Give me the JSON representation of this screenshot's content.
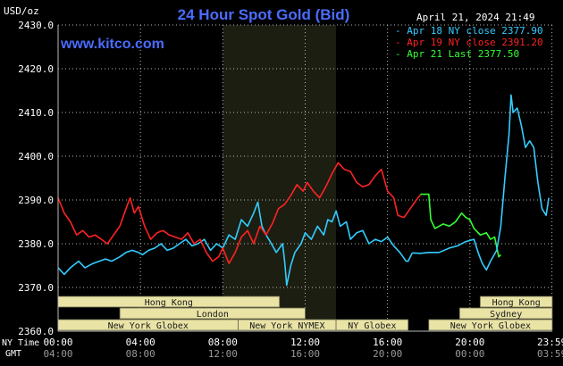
{
  "header": {
    "title": "24 Hour Spot Gold (Bid)",
    "date_time": "April 21, 2024 21:49",
    "y_unit": "USD/oz",
    "source": "www.kitco.com"
  },
  "axis_labels": {
    "ny_time": "NY Time",
    "gmt": "GMT"
  },
  "colors": {
    "background": "#000000",
    "title": "#4a6cff",
    "source": "#4a6cff",
    "text": "#ffffff",
    "grid": "#b8b8b8",
    "shade": "#1c1e12",
    "session_fill": "#e9e3a6",
    "session_text": "#1a1a1a",
    "ny_time_labels": "#ffffff",
    "gmt_labels": "#9a9a9a"
  },
  "legend": [
    {
      "label": "Apr 18 NY close 2377.90",
      "color": "#33ccff"
    },
    {
      "label": "Apr 19 NY close 2391.20",
      "color": "#ff2222"
    },
    {
      "label": "Apr 21 Last 2377.50",
      "color": "#33ff33"
    }
  ],
  "sessions": [
    {
      "label": "Hong Kong",
      "row": 0,
      "start": 0.0,
      "end": 10.75
    },
    {
      "label": "Hong Kong",
      "row": 0,
      "start": 20.5,
      "end": 24.0
    },
    {
      "label": "London",
      "row": 1,
      "start": 3.0,
      "end": 12.0
    },
    {
      "label": "Sydney",
      "row": 1,
      "start": 19.5,
      "end": 24.0
    },
    {
      "label": "New York Globex",
      "row": 2,
      "start": 0.0,
      "end": 8.75
    },
    {
      "label": "New York NYMEX",
      "row": 2,
      "start": 8.75,
      "end": 13.5
    },
    {
      "label": "NY Globex",
      "row": 2,
      "start": 13.5,
      "end": 17.0
    },
    {
      "label": "New York Globex",
      "row": 2,
      "start": 18.0,
      "end": 24.0
    }
  ],
  "chart_data": {
    "type": "line",
    "title": "24 Hour Spot Gold (Bid)",
    "ylabel": "USD/oz",
    "xlabel": "",
    "ylim": [
      2360,
      2430
    ],
    "xlim": [
      0,
      24
    ],
    "y_ticks": [
      "2430.0",
      "2420.0",
      "2410.0",
      "2400.0",
      "2390.0",
      "2380.0",
      "2370.0",
      "2360.0"
    ],
    "y_tick_values": [
      2430,
      2420,
      2410,
      2400,
      2390,
      2380,
      2370,
      2360
    ],
    "x_ticks_ny": [
      "00:00",
      "04:00",
      "08:00",
      "12:00",
      "16:00",
      "20:00",
      "23:59"
    ],
    "x_ticks_gmt": [
      "04:00",
      "08:00",
      "12:00",
      "16:00",
      "20:00",
      "00:00",
      "03:59"
    ],
    "x_tick_hours": [
      0,
      4,
      8,
      12,
      16,
      20,
      23.983
    ],
    "grid": true,
    "shaded_hours": [
      8.0,
      13.5
    ],
    "series": [
      {
        "name": "Apr 18 NY close 2377.90",
        "color": "#33ccff",
        "points": [
          [
            0.0,
            2374.5
          ],
          [
            0.3,
            2373.0
          ],
          [
            0.6,
            2374.5
          ],
          [
            1.0,
            2376.0
          ],
          [
            1.3,
            2374.5
          ],
          [
            1.7,
            2375.5
          ],
          [
            2.0,
            2376.0
          ],
          [
            2.3,
            2376.5
          ],
          [
            2.6,
            2376.0
          ],
          [
            3.0,
            2377.0
          ],
          [
            3.3,
            2378.0
          ],
          [
            3.6,
            2378.5
          ],
          [
            3.9,
            2378.0
          ],
          [
            4.1,
            2377.5
          ],
          [
            4.4,
            2378.5
          ],
          [
            4.7,
            2379.0
          ],
          [
            5.0,
            2380.0
          ],
          [
            5.3,
            2378.5
          ],
          [
            5.6,
            2379.0
          ],
          [
            5.9,
            2380.0
          ],
          [
            6.2,
            2381.0
          ],
          [
            6.5,
            2379.5
          ],
          [
            6.8,
            2380.0
          ],
          [
            7.1,
            2381.0
          ],
          [
            7.4,
            2378.5
          ],
          [
            7.7,
            2380.0
          ],
          [
            8.0,
            2379.0
          ],
          [
            8.3,
            2382.0
          ],
          [
            8.6,
            2381.0
          ],
          [
            8.9,
            2385.5
          ],
          [
            9.2,
            2384.0
          ],
          [
            9.5,
            2387.0
          ],
          [
            9.7,
            2389.5
          ],
          [
            9.9,
            2384.0
          ],
          [
            10.1,
            2382.0
          ],
          [
            10.3,
            2380.5
          ],
          [
            10.6,
            2378.0
          ],
          [
            10.9,
            2380.0
          ],
          [
            11.0,
            2376.0
          ],
          [
            11.1,
            2370.5
          ],
          [
            11.3,
            2375.0
          ],
          [
            11.5,
            2378.0
          ],
          [
            11.8,
            2380.0
          ],
          [
            12.0,
            2382.5
          ],
          [
            12.3,
            2381.0
          ],
          [
            12.6,
            2384.0
          ],
          [
            12.9,
            2382.0
          ],
          [
            13.1,
            2385.5
          ],
          [
            13.3,
            2385.0
          ],
          [
            13.5,
            2387.5
          ],
          [
            13.7,
            2384.0
          ],
          [
            14.0,
            2385.0
          ],
          [
            14.2,
            2381.0
          ],
          [
            14.5,
            2382.5
          ],
          [
            14.8,
            2383.0
          ],
          [
            15.1,
            2380.0
          ],
          [
            15.4,
            2381.0
          ],
          [
            15.7,
            2380.5
          ],
          [
            16.0,
            2381.5
          ],
          [
            16.3,
            2379.5
          ],
          [
            16.6,
            2378.0
          ],
          [
            16.9,
            2376.0
          ],
          [
            17.0,
            2376.0
          ],
          [
            17.2,
            2377.9
          ]
        ]
      },
      {
        "name": "Apr 19 NY close 2391.20",
        "color": "#ff2222",
        "points": [
          [
            0.0,
            2390.5
          ],
          [
            0.3,
            2387.0
          ],
          [
            0.6,
            2385.0
          ],
          [
            0.9,
            2382.0
          ],
          [
            1.2,
            2383.0
          ],
          [
            1.5,
            2381.5
          ],
          [
            1.8,
            2382.0
          ],
          [
            2.1,
            2381.0
          ],
          [
            2.4,
            2380.0
          ],
          [
            2.7,
            2382.0
          ],
          [
            3.0,
            2384.0
          ],
          [
            3.3,
            2388.0
          ],
          [
            3.5,
            2390.5
          ],
          [
            3.7,
            2387.0
          ],
          [
            3.9,
            2388.5
          ],
          [
            4.2,
            2384.0
          ],
          [
            4.5,
            2381.0
          ],
          [
            4.8,
            2382.5
          ],
          [
            5.1,
            2383.0
          ],
          [
            5.4,
            2382.0
          ],
          [
            5.7,
            2381.5
          ],
          [
            6.0,
            2381.0
          ],
          [
            6.3,
            2382.5
          ],
          [
            6.6,
            2380.0
          ],
          [
            6.9,
            2381.0
          ],
          [
            7.2,
            2378.0
          ],
          [
            7.5,
            2376.0
          ],
          [
            7.8,
            2377.0
          ],
          [
            8.0,
            2379.0
          ],
          [
            8.3,
            2375.5
          ],
          [
            8.6,
            2378.0
          ],
          [
            8.9,
            2381.5
          ],
          [
            9.2,
            2383.0
          ],
          [
            9.5,
            2380.0
          ],
          [
            9.8,
            2384.0
          ],
          [
            10.1,
            2382.0
          ],
          [
            10.4,
            2384.5
          ],
          [
            10.7,
            2388.0
          ],
          [
            11.0,
            2389.0
          ],
          [
            11.3,
            2391.0
          ],
          [
            11.6,
            2393.5
          ],
          [
            11.9,
            2392.0
          ],
          [
            12.1,
            2394.0
          ],
          [
            12.4,
            2392.0
          ],
          [
            12.7,
            2390.5
          ],
          [
            13.0,
            2393.0
          ],
          [
            13.3,
            2396.0
          ],
          [
            13.6,
            2398.5
          ],
          [
            13.9,
            2397.0
          ],
          [
            14.2,
            2396.5
          ],
          [
            14.5,
            2394.0
          ],
          [
            14.8,
            2393.0
          ],
          [
            15.1,
            2393.5
          ],
          [
            15.4,
            2395.5
          ],
          [
            15.7,
            2397.0
          ],
          [
            16.0,
            2392.0
          ],
          [
            16.3,
            2390.5
          ],
          [
            16.5,
            2386.5
          ],
          [
            16.8,
            2386.0
          ],
          [
            17.1,
            2388.0
          ],
          [
            17.4,
            2390.0
          ],
          [
            17.6,
            2391.2
          ]
        ]
      },
      {
        "name": "Apr 21 Last 2377.50",
        "color": "#33ff33",
        "points": [
          [
            17.6,
            2391.3
          ],
          [
            18.0,
            2391.3
          ],
          [
            18.1,
            2385.5
          ],
          [
            18.3,
            2383.5
          ],
          [
            18.5,
            2384.0
          ],
          [
            18.7,
            2384.5
          ],
          [
            19.0,
            2384.0
          ],
          [
            19.3,
            2385.0
          ],
          [
            19.6,
            2387.0
          ],
          [
            19.8,
            2386.0
          ],
          [
            20.0,
            2385.5
          ],
          [
            20.2,
            2383.5
          ],
          [
            20.5,
            2382.0
          ],
          [
            20.8,
            2382.5
          ],
          [
            21.0,
            2381.0
          ],
          [
            21.2,
            2381.5
          ],
          [
            21.4,
            2377.0
          ],
          [
            21.5,
            2377.5
          ]
        ]
      },
      {
        "name": "",
        "color": "#33ccff",
        "points": [
          [
            17.2,
            2377.9
          ],
          [
            17.6,
            2377.8
          ],
          [
            18.0,
            2378.0
          ],
          [
            18.5,
            2378.0
          ],
          [
            19.0,
            2379.0
          ],
          [
            19.4,
            2379.5
          ],
          [
            19.8,
            2380.5
          ],
          [
            20.2,
            2381.0
          ],
          [
            20.4,
            2378.0
          ],
          [
            20.6,
            2375.5
          ],
          [
            20.8,
            2374.0
          ],
          [
            21.0,
            2376.0
          ],
          [
            21.3,
            2378.5
          ],
          [
            21.5,
            2384.0
          ],
          [
            21.7,
            2395.0
          ],
          [
            21.9,
            2405.0
          ],
          [
            22.0,
            2414.0
          ],
          [
            22.1,
            2410.0
          ],
          [
            22.3,
            2411.0
          ],
          [
            22.5,
            2407.0
          ],
          [
            22.7,
            2402.0
          ],
          [
            22.9,
            2403.5
          ],
          [
            23.1,
            2402.0
          ],
          [
            23.3,
            2394.0
          ],
          [
            23.5,
            2388.0
          ],
          [
            23.7,
            2386.5
          ],
          [
            23.83,
            2390.5
          ]
        ]
      }
    ]
  }
}
